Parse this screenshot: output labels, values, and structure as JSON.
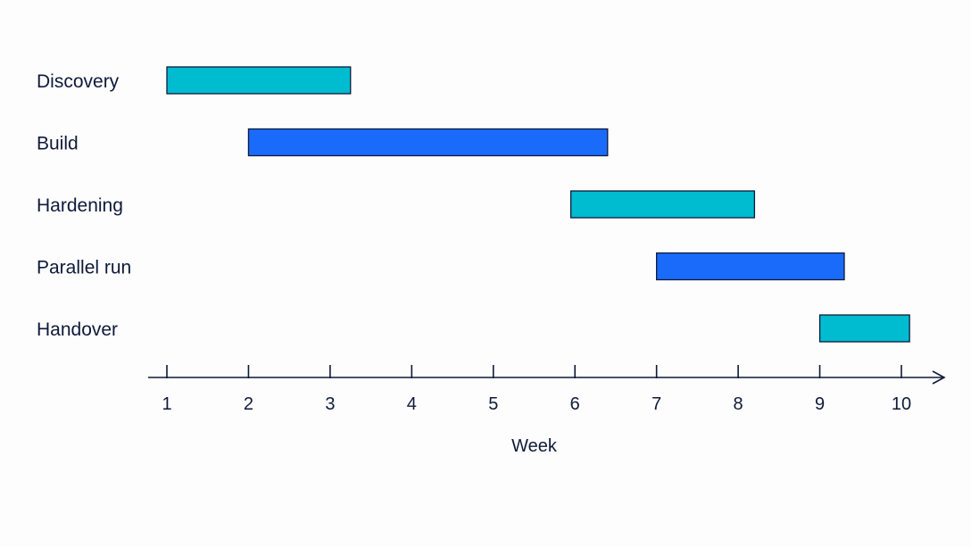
{
  "chart_data": {
    "type": "gantt",
    "title": "",
    "xlabel": "Week",
    "ylabel": "",
    "xlim": [
      1,
      10
    ],
    "x_ticks": [
      1,
      2,
      3,
      4,
      5,
      6,
      7,
      8,
      9,
      10
    ],
    "grid": false,
    "legend": "none",
    "tasks": [
      {
        "label": "Discovery",
        "start": 1.0,
        "end": 3.25,
        "color": "#00BCD0"
      },
      {
        "label": "Build",
        "start": 2.0,
        "end": 6.4,
        "color": "#1A6BFA"
      },
      {
        "label": "Hardening",
        "start": 5.95,
        "end": 8.2,
        "color": "#00BCD0"
      },
      {
        "label": "Parallel run",
        "start": 7.0,
        "end": 9.3,
        "color": "#1A6BFA"
      },
      {
        "label": "Handover",
        "start": 9.0,
        "end": 10.1,
        "color": "#00BCD0"
      }
    ]
  },
  "colors": {
    "axis": "#0f1a3a",
    "text": "#0f1a3a",
    "bar_outline": "#0f1a3a"
  }
}
